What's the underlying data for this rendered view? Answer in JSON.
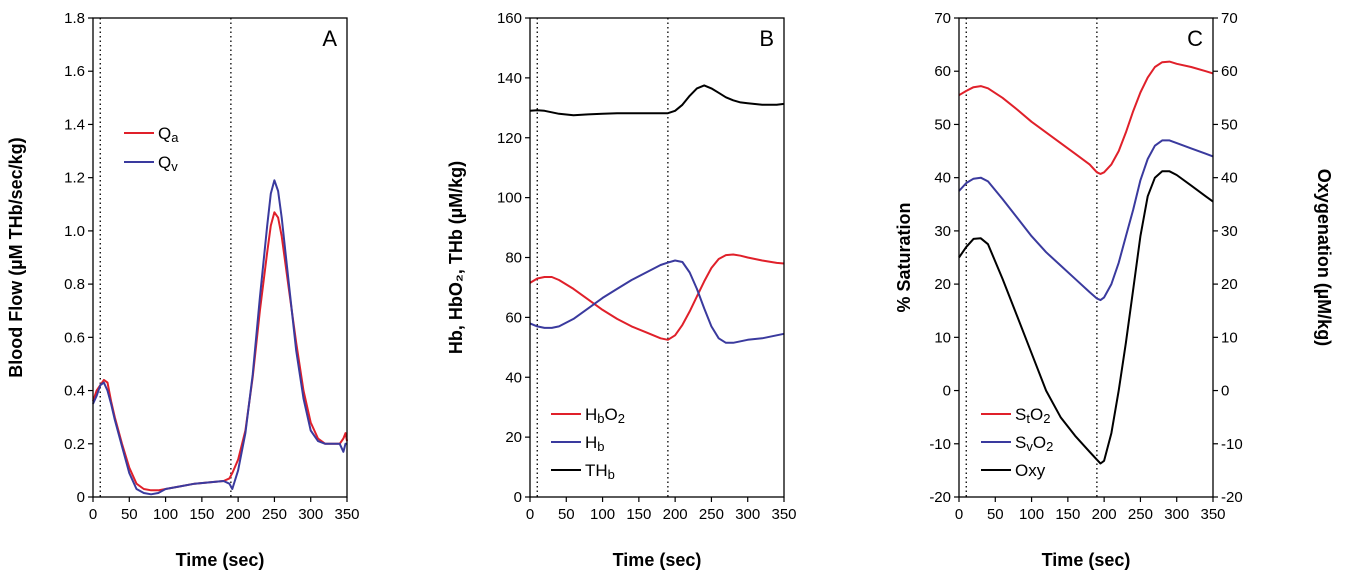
{
  "chart_data": [
    {
      "type": "line",
      "panel_letter": "A",
      "xlabel": "Time (sec)",
      "ylabel": "Blood Flow (µM THb/sec/kg)",
      "xlim": [
        0,
        350
      ],
      "ylim": [
        0,
        1.8
      ],
      "xticks": [
        0,
        50,
        100,
        150,
        200,
        250,
        300,
        350
      ],
      "yticks": [
        0,
        0.2,
        0.4,
        0.6,
        0.8,
        1.0,
        1.2,
        1.4,
        1.6,
        1.8
      ],
      "ytick_labels": [
        "0",
        "0.2",
        "0.4",
        "0.6",
        "0.8",
        "1.0",
        "1.2",
        "1.4",
        "1.6",
        "1.8"
      ],
      "vlines": [
        10,
        190
      ],
      "legend_position": "upper-left",
      "series": [
        {
          "name": "Qa",
          "name_main": "Q",
          "name_sub": "a",
          "color": "#e0202a",
          "x": [
            0,
            5,
            10,
            15,
            20,
            25,
            30,
            40,
            50,
            60,
            70,
            80,
            90,
            100,
            120,
            140,
            160,
            180,
            188,
            192,
            200,
            210,
            220,
            230,
            240,
            245,
            250,
            255,
            260,
            270,
            280,
            290,
            300,
            310,
            320,
            330,
            340,
            345,
            348,
            350
          ],
          "y": [
            0.36,
            0.4,
            0.42,
            0.44,
            0.43,
            0.36,
            0.3,
            0.2,
            0.11,
            0.05,
            0.03,
            0.025,
            0.025,
            0.03,
            0.04,
            0.05,
            0.055,
            0.06,
            0.07,
            0.09,
            0.14,
            0.25,
            0.45,
            0.7,
            0.92,
            1.02,
            1.07,
            1.05,
            0.98,
            0.78,
            0.58,
            0.4,
            0.28,
            0.22,
            0.2,
            0.2,
            0.2,
            0.22,
            0.24,
            0.21
          ]
        },
        {
          "name": "Qv",
          "name_main": "Q",
          "name_sub": "v",
          "color": "#3a3a9e",
          "x": [
            0,
            5,
            10,
            15,
            20,
            25,
            30,
            40,
            50,
            60,
            70,
            80,
            90,
            100,
            120,
            140,
            160,
            180,
            188,
            192,
            200,
            210,
            220,
            230,
            240,
            245,
            250,
            255,
            260,
            270,
            280,
            290,
            300,
            310,
            320,
            330,
            340,
            345,
            348,
            350
          ],
          "y": [
            0.35,
            0.38,
            0.42,
            0.43,
            0.4,
            0.35,
            0.29,
            0.19,
            0.09,
            0.03,
            0.015,
            0.01,
            0.015,
            0.03,
            0.04,
            0.05,
            0.055,
            0.06,
            0.05,
            0.03,
            0.1,
            0.24,
            0.46,
            0.75,
            1.02,
            1.14,
            1.19,
            1.15,
            1.05,
            0.8,
            0.55,
            0.37,
            0.25,
            0.21,
            0.2,
            0.2,
            0.2,
            0.17,
            0.2,
            0.2
          ]
        }
      ]
    },
    {
      "type": "line",
      "panel_letter": "B",
      "xlabel": "Time (sec)",
      "ylabel": "Hb, HbO₂, THb (µM/kg)",
      "xlim": [
        0,
        350
      ],
      "ylim": [
        0,
        160
      ],
      "xticks": [
        0,
        50,
        100,
        150,
        200,
        250,
        300,
        350
      ],
      "yticks": [
        0,
        20,
        40,
        60,
        80,
        100,
        120,
        140,
        160
      ],
      "ytick_labels": [
        "0",
        "20",
        "40",
        "60",
        "80",
        "100",
        "120",
        "140",
        "160"
      ],
      "vlines": [
        10,
        190
      ],
      "legend_position": "lower-left",
      "series": [
        {
          "name": "HbO2",
          "name_main": "H",
          "name_sub": "b",
          "name_tail": "O",
          "name_sub2": "2",
          "color": "#e0202a",
          "x": [
            0,
            10,
            20,
            30,
            40,
            60,
            80,
            100,
            120,
            140,
            160,
            180,
            190,
            200,
            210,
            220,
            230,
            240,
            250,
            260,
            270,
            280,
            290,
            300,
            320,
            340,
            350
          ],
          "y": [
            71.5,
            73,
            73.5,
            73.5,
            72.5,
            69.5,
            66,
            62.5,
            59.5,
            57,
            55,
            53,
            52.5,
            54,
            57.5,
            62,
            67,
            72,
            76.5,
            79.5,
            80.8,
            81,
            80.6,
            80,
            79,
            78.2,
            78
          ]
        },
        {
          "name": "Hb",
          "name_main": "H",
          "name_sub": "b",
          "color": "#3a3a9e",
          "x": [
            0,
            10,
            20,
            30,
            40,
            60,
            80,
            100,
            120,
            140,
            160,
            180,
            190,
            200,
            210,
            220,
            230,
            240,
            250,
            260,
            270,
            280,
            290,
            300,
            320,
            340,
            350
          ],
          "y": [
            58,
            57,
            56.5,
            56.5,
            57,
            59.5,
            63,
            66.5,
            69.5,
            72.5,
            75,
            77.5,
            78.3,
            79,
            78.5,
            75,
            69.5,
            63,
            57,
            53,
            51.5,
            51.5,
            52,
            52.5,
            53,
            54,
            54.5
          ]
        },
        {
          "name": "THb",
          "name_main": "TH",
          "name_sub": "b",
          "color": "#000000",
          "x": [
            0,
            10,
            20,
            30,
            40,
            60,
            80,
            100,
            120,
            140,
            160,
            180,
            190,
            200,
            210,
            220,
            230,
            240,
            250,
            260,
            270,
            280,
            290,
            300,
            320,
            340,
            350
          ],
          "y": [
            129,
            129.2,
            129,
            128.5,
            128,
            127.5,
            127.8,
            128,
            128.2,
            128.2,
            128.2,
            128.2,
            128.2,
            129,
            131,
            134,
            136.5,
            137.5,
            136.5,
            135,
            133.5,
            132.5,
            131.8,
            131.5,
            131,
            131,
            131.3
          ]
        }
      ]
    },
    {
      "type": "line",
      "panel_letter": "C",
      "xlabel": "Time (sec)",
      "ylabel": "% Saturation",
      "ylabel_right": "Oxygenation (µM/kg)",
      "xlim": [
        0,
        350
      ],
      "ylim": [
        -20,
        70
      ],
      "ylim_right": [
        -20,
        70
      ],
      "xticks": [
        0,
        50,
        100,
        150,
        200,
        250,
        300,
        350
      ],
      "yticks": [
        -20,
        -10,
        0,
        10,
        20,
        30,
        40,
        50,
        60,
        70
      ],
      "ytick_labels": [
        "-20",
        "-10",
        "0",
        "10",
        "20",
        "30",
        "40",
        "50",
        "60",
        "70"
      ],
      "vlines": [
        10,
        190
      ],
      "legend_position": "lower-left",
      "series": [
        {
          "name": "StO2",
          "name_main": "S",
          "name_sub": "t",
          "name_tail": "O",
          "name_sub2": "2",
          "color": "#e0202a",
          "x": [
            0,
            10,
            20,
            30,
            40,
            60,
            80,
            100,
            120,
            140,
            160,
            180,
            190,
            195,
            200,
            210,
            220,
            230,
            240,
            250,
            260,
            270,
            280,
            290,
            300,
            320,
            340,
            350
          ],
          "y": [
            55.5,
            56.3,
            57,
            57.2,
            56.8,
            55,
            52.8,
            50.5,
            48.5,
            46.5,
            44.5,
            42.5,
            41,
            40.7,
            41,
            42.5,
            45,
            48.5,
            52.5,
            56,
            58.8,
            60.8,
            61.7,
            61.8,
            61.4,
            60.8,
            60,
            59.6
          ]
        },
        {
          "name": "SvO2",
          "name_main": "S",
          "name_sub": "v",
          "name_tail": "O",
          "name_sub2": "2",
          "color": "#3a3a9e",
          "x": [
            0,
            10,
            20,
            30,
            40,
            60,
            80,
            100,
            120,
            140,
            160,
            180,
            190,
            195,
            200,
            210,
            220,
            230,
            240,
            250,
            260,
            270,
            280,
            290,
            300,
            320,
            340,
            350
          ],
          "y": [
            37.5,
            39,
            39.8,
            40,
            39.3,
            36,
            32.5,
            29,
            26,
            23.5,
            21,
            18.5,
            17.3,
            17,
            17.5,
            20,
            24,
            29,
            34,
            39.5,
            43.5,
            46,
            47,
            47,
            46.5,
            45.5,
            44.5,
            44
          ]
        },
        {
          "name": "Oxy",
          "name_main": "Oxy",
          "color": "#000000",
          "x": [
            0,
            10,
            20,
            30,
            40,
            60,
            80,
            100,
            120,
            140,
            160,
            180,
            190,
            195,
            200,
            210,
            220,
            230,
            240,
            250,
            260,
            270,
            280,
            290,
            300,
            320,
            340,
            350
          ],
          "y": [
            25,
            27,
            28.5,
            28.6,
            27.5,
            21,
            14,
            7,
            0,
            -5,
            -8.5,
            -11.5,
            -13,
            -13.7,
            -13.2,
            -8,
            0,
            9,
            19,
            29,
            36.5,
            40,
            41.2,
            41.2,
            40.5,
            38.5,
            36.5,
            35.5
          ]
        }
      ]
    }
  ]
}
